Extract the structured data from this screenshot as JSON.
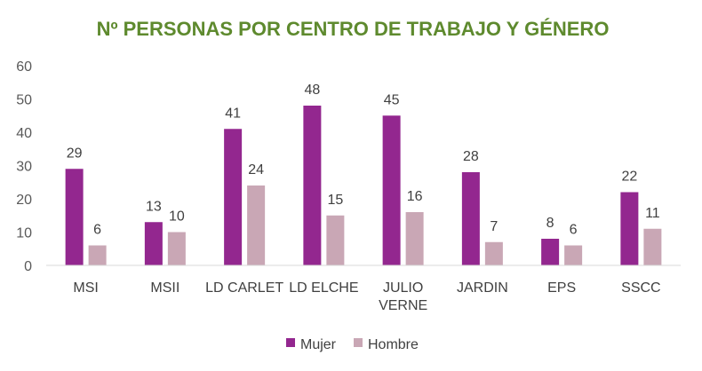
{
  "chart_data": {
    "type": "bar",
    "title": "Nº PERSONAS POR CENTRO DE TRABAJO  Y GÉNERO",
    "categories": [
      "MSI",
      "MSII",
      "LD CARLET",
      "LD ELCHE",
      "JULIO VERNE",
      "JARDIN",
      "EPS",
      "SSCC"
    ],
    "category_lines": [
      [
        "MSI"
      ],
      [
        "MSII"
      ],
      [
        "LD CARLET"
      ],
      [
        "LD ELCHE"
      ],
      [
        "JULIO",
        "VERNE"
      ],
      [
        "JARDIN"
      ],
      [
        "EPS"
      ],
      [
        "SSCC"
      ]
    ],
    "series": [
      {
        "name": "Mujer",
        "values": [
          29,
          13,
          41,
          48,
          45,
          28,
          8,
          22
        ],
        "color": "#93278F"
      },
      {
        "name": "Hombre",
        "values": [
          6,
          10,
          24,
          15,
          16,
          7,
          6,
          11
        ],
        "color": "#C9A7B5"
      }
    ],
    "ylim": [
      0,
      60
    ],
    "yticks": [
      0,
      10,
      20,
      30,
      40,
      50,
      60
    ],
    "xlabel": "",
    "ylabel": "",
    "grid": false,
    "legend_position": "bottom",
    "title_color": "#5E8A2E"
  }
}
